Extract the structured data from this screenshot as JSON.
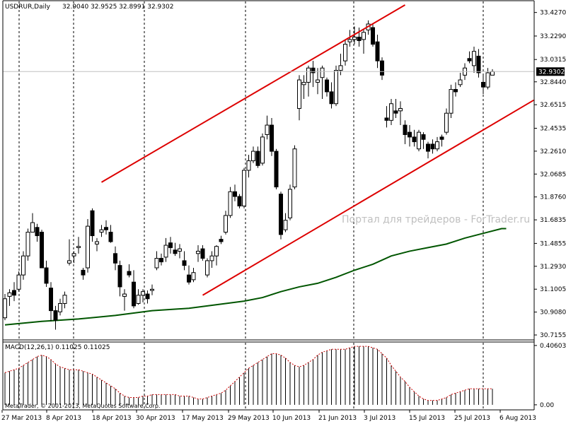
{
  "header": {
    "symbol": "USDRUR,Daily",
    "ohlc": "32.9040 32.9525 32.8991 32.9302"
  },
  "watermark": "Портал для трейдеров - ForTrader.ru",
  "copyright": "MetaTrader, © 2001-2013, MetaQuotes Software Corp.",
  "current_price_label": "32.9302",
  "colors": {
    "channel": "#dd0000",
    "ma": "#005500",
    "candle": "#000000",
    "macd_signal": "#cc0000",
    "background": "#ffffff",
    "price_label_bg": "#000000"
  },
  "chart_data": [
    {
      "type": "candlestick",
      "title": "USDRUR,Daily",
      "price_ticks": [
        "33.4270",
        "33.2290",
        "33.0315",
        "32.8440",
        "32.6515",
        "32.4535",
        "32.2610",
        "32.0685",
        "31.8760",
        "31.6835",
        "31.4855",
        "31.2930",
        "31.1005",
        "30.9080",
        "30.7155"
      ],
      "ylim": [
        30.68,
        33.52
      ],
      "date_ticks": [
        "27 Mar 2013",
        "8 Apr 2013",
        "18 Apr 2013",
        "30 Apr 2013",
        "17 May 2013",
        "29 May 2013",
        "10 Jun 2013",
        "21 Jun 2013",
        "3 Jul 2013",
        "15 Jul 2013",
        "25 Jul 2013",
        "6 Aug 2013"
      ],
      "grid": "vertical dashed",
      "candles": [
        [
          30.86,
          31.06,
          30.84,
          31.02
        ],
        [
          31.04,
          31.1,
          30.96,
          31.07
        ],
        [
          31.09,
          31.16,
          31.0,
          31.05
        ],
        [
          31.1,
          31.25,
          31.08,
          31.22
        ],
        [
          31.22,
          31.42,
          31.18,
          31.38
        ],
        [
          31.38,
          31.61,
          31.34,
          31.58
        ],
        [
          31.58,
          31.74,
          31.58,
          31.66
        ],
        [
          31.62,
          31.65,
          31.5,
          31.55
        ],
        [
          31.58,
          31.6,
          31.3,
          31.28
        ],
        [
          31.28,
          31.34,
          31.12,
          31.15
        ],
        [
          31.11,
          31.16,
          30.83,
          30.92
        ],
        [
          30.92,
          30.96,
          30.76,
          30.84
        ],
        [
          30.91,
          31.02,
          30.88,
          30.98
        ],
        [
          30.98,
          31.08,
          30.94,
          31.05
        ],
        [
          31.32,
          31.52,
          31.3,
          31.34
        ],
        [
          31.38,
          31.42,
          31.32,
          31.4
        ],
        [
          31.45,
          31.54,
          31.4,
          31.46
        ],
        [
          31.26,
          31.28,
          31.18,
          31.22
        ],
        [
          31.28,
          31.69,
          31.24,
          31.63
        ],
        [
          31.76,
          31.78,
          31.5,
          31.55
        ],
        [
          31.48,
          31.53,
          31.42,
          31.5
        ],
        [
          31.58,
          31.64,
          31.54,
          31.6
        ],
        [
          31.62,
          31.68,
          31.56,
          31.6
        ],
        [
          31.58,
          31.64,
          31.49,
          31.5
        ],
        [
          31.4,
          31.46,
          31.26,
          31.32
        ],
        [
          31.3,
          31.34,
          31.04,
          31.12
        ],
        [
          31.04,
          31.1,
          30.92,
          31.06
        ],
        [
          31.25,
          31.31,
          31.2,
          31.22
        ],
        [
          31.16,
          31.26,
          30.94,
          30.96
        ],
        [
          30.98,
          31.1,
          30.97,
          31.05
        ],
        [
          31.05,
          31.1,
          30.99,
          31.08
        ],
        [
          31.06,
          31.09,
          30.98,
          31.02
        ],
        [
          31.09,
          31.14,
          31.05,
          31.1
        ],
        [
          31.28,
          31.42,
          31.26,
          31.36
        ],
        [
          31.36,
          31.4,
          31.3,
          31.33
        ],
        [
          31.37,
          31.53,
          31.33,
          31.47
        ],
        [
          31.49,
          31.54,
          31.4,
          31.45
        ],
        [
          31.43,
          31.49,
          31.38,
          31.4
        ],
        [
          31.42,
          31.48,
          31.36,
          31.44
        ],
        [
          31.34,
          31.42,
          31.26,
          31.3
        ],
        [
          31.22,
          31.3,
          31.14,
          31.16
        ],
        [
          31.18,
          31.28,
          31.16,
          31.24
        ],
        [
          31.4,
          31.47,
          31.33,
          31.42
        ],
        [
          31.44,
          31.47,
          31.34,
          31.36
        ],
        [
          31.22,
          31.36,
          31.2,
          31.34
        ],
        [
          31.34,
          31.42,
          31.28,
          31.38
        ],
        [
          31.38,
          31.47,
          31.3,
          31.46
        ],
        [
          31.52,
          31.55,
          31.48,
          31.5
        ],
        [
          31.58,
          31.76,
          31.56,
          31.72
        ],
        [
          31.72,
          31.96,
          31.7,
          31.92
        ],
        [
          31.92,
          31.98,
          31.84,
          31.88
        ],
        [
          31.88,
          31.9,
          31.78,
          31.8
        ],
        [
          31.8,
          32.12,
          31.78,
          32.1
        ],
        [
          32.1,
          32.23,
          32.04,
          32.18
        ],
        [
          32.18,
          32.3,
          32.16,
          32.26
        ],
        [
          32.26,
          32.3,
          32.12,
          32.14
        ],
        [
          32.16,
          32.41,
          32.14,
          32.38
        ],
        [
          32.4,
          32.56,
          32.36,
          32.48
        ],
        [
          32.48,
          32.54,
          32.22,
          32.26
        ],
        [
          32.26,
          32.28,
          31.94,
          31.96
        ],
        [
          31.9,
          31.92,
          31.52,
          31.56
        ],
        [
          31.6,
          31.74,
          31.58,
          31.68
        ],
        [
          31.7,
          31.98,
          31.68,
          31.94
        ],
        [
          31.96,
          32.31,
          31.94,
          32.28
        ],
        [
          32.62,
          32.9,
          32.52,
          32.86
        ],
        [
          32.82,
          32.9,
          32.7,
          32.84
        ],
        [
          32.84,
          32.98,
          32.72,
          32.96
        ],
        [
          32.96,
          33.02,
          32.8,
          32.92
        ],
        [
          32.84,
          32.96,
          32.74,
          32.86
        ],
        [
          32.88,
          32.98,
          32.7,
          32.96
        ],
        [
          32.86,
          32.88,
          32.72,
          32.76
        ],
        [
          32.76,
          32.84,
          32.62,
          32.66
        ],
        [
          32.66,
          32.98,
          32.64,
          32.94
        ],
        [
          32.94,
          33.08,
          32.9,
          32.98
        ],
        [
          33.02,
          33.2,
          32.98,
          33.16
        ],
        [
          33.18,
          33.28,
          33.14,
          33.2
        ],
        [
          33.2,
          33.31,
          33.16,
          33.22
        ],
        [
          33.22,
          33.3,
          33.14,
          33.19
        ],
        [
          33.2,
          33.29,
          33.08,
          33.26
        ],
        [
          33.28,
          33.36,
          33.24,
          33.33
        ],
        [
          33.3,
          33.33,
          33.14,
          33.16
        ],
        [
          33.18,
          33.24,
          32.96,
          33.02
        ],
        [
          33.02,
          33.05,
          32.86,
          32.9
        ],
        [
          32.54,
          32.64,
          32.46,
          32.52
        ],
        [
          32.52,
          32.7,
          32.48,
          32.66
        ],
        [
          32.6,
          32.7,
          32.54,
          32.58
        ],
        [
          32.6,
          32.68,
          32.48,
          32.62
        ],
        [
          32.48,
          32.52,
          32.32,
          32.4
        ],
        [
          32.42,
          32.48,
          32.3,
          32.38
        ],
        [
          32.38,
          32.44,
          32.3,
          32.34
        ],
        [
          32.28,
          32.44,
          32.26,
          32.42
        ],
        [
          32.4,
          32.42,
          32.28,
          32.36
        ],
        [
          32.32,
          32.34,
          32.2,
          32.26
        ],
        [
          32.32,
          32.36,
          32.24,
          32.28
        ],
        [
          32.28,
          32.38,
          32.26,
          32.34
        ],
        [
          32.38,
          32.4,
          32.3,
          32.36
        ],
        [
          32.42,
          32.62,
          32.4,
          32.58
        ],
        [
          32.58,
          32.82,
          32.54,
          32.78
        ],
        [
          32.78,
          32.84,
          32.72,
          32.76
        ],
        [
          32.82,
          32.92,
          32.8,
          32.86
        ],
        [
          32.9,
          33.0,
          32.86,
          32.96
        ],
        [
          33.04,
          33.1,
          33.0,
          33.02
        ],
        [
          32.98,
          33.14,
          32.92,
          33.1
        ],
        [
          33.06,
          33.12,
          32.88,
          32.92
        ],
        [
          32.84,
          32.9,
          32.74,
          32.8
        ],
        [
          32.8,
          32.96,
          32.78,
          32.92
        ],
        [
          32.9,
          32.95,
          32.9,
          32.93
        ]
      ],
      "ma": [
        [
          0,
          30.8
        ],
        [
          8,
          30.83
        ],
        [
          16,
          30.85
        ],
        [
          24,
          30.88
        ],
        [
          32,
          30.92
        ],
        [
          40,
          30.94
        ],
        [
          48,
          30.98
        ],
        [
          52,
          31.0
        ],
        [
          56,
          31.03
        ],
        [
          60,
          31.08
        ],
        [
          64,
          31.12
        ],
        [
          68,
          31.15
        ],
        [
          72,
          31.2
        ],
        [
          76,
          31.26
        ],
        [
          80,
          31.31
        ],
        [
          84,
          31.38
        ],
        [
          88,
          31.42
        ],
        [
          92,
          31.45
        ],
        [
          96,
          31.48
        ],
        [
          100,
          31.53
        ],
        [
          104,
          31.57
        ],
        [
          108,
          31.61
        ],
        [
          109,
          31.61
        ]
      ],
      "channel_upper": [
        [
          21,
          32.0
        ],
        [
          87,
          33.49
        ]
      ],
      "channel_lower": [
        [
          43,
          31.05
        ],
        [
          115,
          32.69
        ]
      ]
    },
    {
      "type": "bar",
      "title": "MACD(12,26,1) 0.11025 0.11025",
      "series_name": "MACD(12,26,1)",
      "ticks": [
        "0.40603",
        "0.00"
      ],
      "ylim": [
        -0.02,
        0.42
      ],
      "values": [
        0.22,
        0.23,
        0.24,
        0.25,
        0.27,
        0.29,
        0.31,
        0.33,
        0.34,
        0.33,
        0.31,
        0.28,
        0.26,
        0.25,
        0.24,
        0.24,
        0.24,
        0.23,
        0.22,
        0.21,
        0.19,
        0.17,
        0.15,
        0.13,
        0.11,
        0.08,
        0.06,
        0.05,
        0.05,
        0.05,
        0.06,
        0.06,
        0.07,
        0.07,
        0.07,
        0.07,
        0.07,
        0.07,
        0.06,
        0.06,
        0.06,
        0.05,
        0.04,
        0.04,
        0.05,
        0.06,
        0.07,
        0.08,
        0.1,
        0.13,
        0.16,
        0.19,
        0.22,
        0.25,
        0.27,
        0.29,
        0.31,
        0.33,
        0.35,
        0.35,
        0.34,
        0.32,
        0.29,
        0.27,
        0.26,
        0.27,
        0.29,
        0.31,
        0.34,
        0.36,
        0.37,
        0.38,
        0.38,
        0.38,
        0.38,
        0.39,
        0.4,
        0.4,
        0.4,
        0.4,
        0.39,
        0.38,
        0.35,
        0.32,
        0.27,
        0.23,
        0.19,
        0.16,
        0.12,
        0.09,
        0.06,
        0.04,
        0.03,
        0.03,
        0.03,
        0.04,
        0.05,
        0.07,
        0.08,
        0.09,
        0.1,
        0.11,
        0.11,
        0.11,
        0.11,
        0.11,
        0.11
      ]
    }
  ]
}
